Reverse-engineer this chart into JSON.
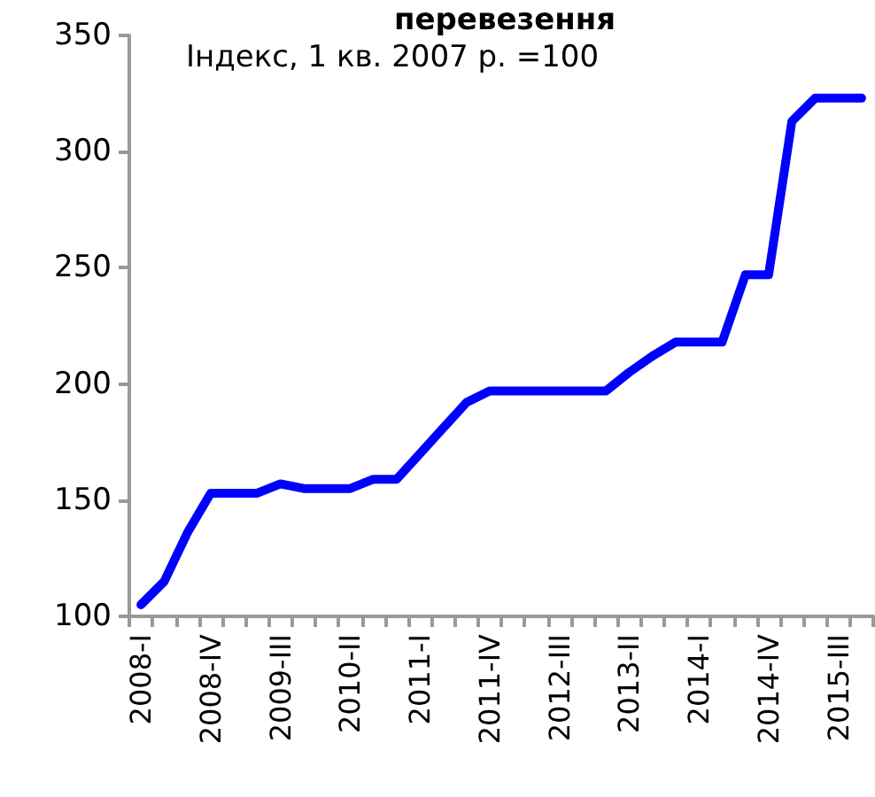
{
  "chart_data": {
    "type": "line",
    "title": "перевезення",
    "subtitle": "Індекс, 1 кв. 2007 р. =100",
    "categories": [
      "2008-I",
      null,
      null,
      "2008-IV",
      null,
      null,
      "2009-III",
      null,
      null,
      "2010-II",
      null,
      null,
      "2011-I",
      null,
      null,
      "2011-IV",
      null,
      null,
      "2012-III",
      null,
      null,
      "2013-II",
      null,
      null,
      "2014-I",
      null,
      null,
      "2014-IV",
      null,
      null,
      "2015-III",
      null
    ],
    "series": [
      {
        "color": "#0000ff",
        "values": [
          105,
          115,
          136,
          153,
          153,
          153,
          157,
          155,
          155,
          155,
          159,
          159,
          170,
          181,
          192,
          197,
          197,
          197,
          197,
          197,
          197,
          205,
          212,
          218,
          218,
          218,
          247,
          247,
          313,
          323,
          323,
          323
        ]
      }
    ],
    "ylim": [
      100,
      350
    ],
    "yticks": [
      100,
      150,
      200,
      250,
      300,
      350
    ],
    "grid": false,
    "marker": "none",
    "line_style": "solid"
  }
}
